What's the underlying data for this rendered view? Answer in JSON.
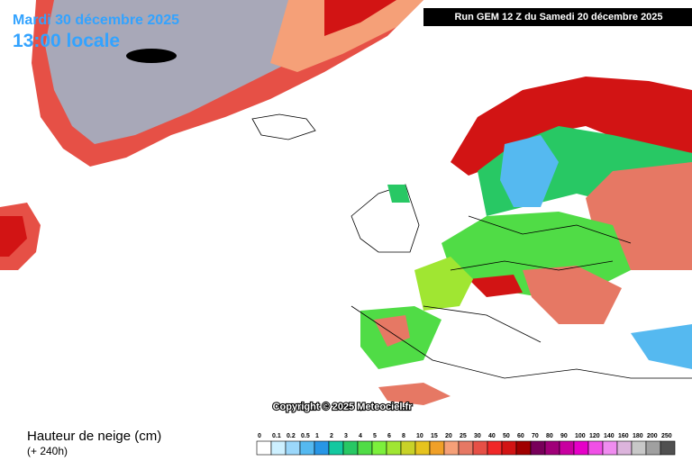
{
  "header": {
    "date": "Mardi 30 décembre 2025",
    "time": "13:00 locale",
    "run": "Run GEM 12 Z du Samedi 20 décembre 2025"
  },
  "copyright": "Copyright © 2025 Meteociel.fr",
  "legend": {
    "title": "Hauteur de neige (cm)",
    "subtitle": "(+ 240h)",
    "items": [
      {
        "label": "0",
        "color": "#ffffff"
      },
      {
        "label": "0.1",
        "color": "#cdf0ff"
      },
      {
        "label": "0.2",
        "color": "#9bd7fa"
      },
      {
        "label": "0.5",
        "color": "#55b9f0"
      },
      {
        "label": "1",
        "color": "#2896e6"
      },
      {
        "label": "2",
        "color": "#14c8a0"
      },
      {
        "label": "3",
        "color": "#28c864"
      },
      {
        "label": "4",
        "color": "#50dc46"
      },
      {
        "label": "5",
        "color": "#7cf03c"
      },
      {
        "label": "6",
        "color": "#a0e632"
      },
      {
        "label": "8",
        "color": "#c8d228"
      },
      {
        "label": "10",
        "color": "#e6c31e"
      },
      {
        "label": "15",
        "color": "#f0a028"
      },
      {
        "label": "20",
        "color": "#f5a078"
      },
      {
        "label": "25",
        "color": "#e67864"
      },
      {
        "label": "30",
        "color": "#e65046"
      },
      {
        "label": "40",
        "color": "#f02828"
      },
      {
        "label": "50",
        "color": "#d21414"
      },
      {
        "label": "60",
        "color": "#a00000"
      },
      {
        "label": "70",
        "color": "#78005a"
      },
      {
        "label": "80",
        "color": "#a00078"
      },
      {
        "label": "90",
        "color": "#c800a0"
      },
      {
        "label": "100",
        "color": "#e600c8"
      },
      {
        "label": "120",
        "color": "#f050e6"
      },
      {
        "label": "140",
        "color": "#f08cf0"
      },
      {
        "label": "160",
        "color": "#dcb4dc"
      },
      {
        "label": "180",
        "color": "#c8c8c8"
      },
      {
        "label": "200",
        "color": "#a0a0a0"
      },
      {
        "label": "250",
        "color": "#505050"
      }
    ]
  }
}
